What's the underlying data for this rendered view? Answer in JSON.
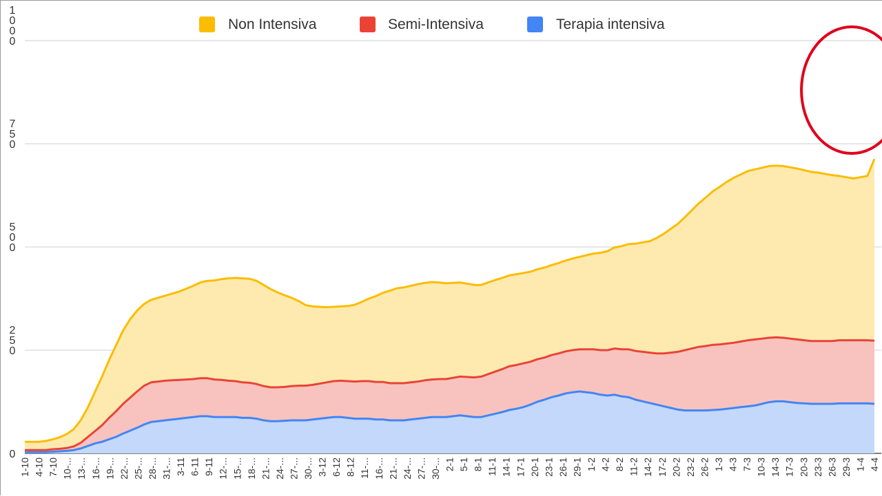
{
  "chart_data": {
    "type": "area",
    "stacked": true,
    "grid": true,
    "legend_position": "top",
    "ylim": [
      0,
      1000
    ],
    "y_ticks": [
      {
        "value": 0,
        "lines": [
          "0"
        ]
      },
      {
        "value": 250,
        "lines": [
          "2",
          "5",
          "0"
        ]
      },
      {
        "value": 500,
        "lines": [
          "5",
          "0",
          "0"
        ]
      },
      {
        "value": 750,
        "lines": [
          "7",
          "5",
          "0"
        ]
      },
      {
        "value": 1000,
        "lines": [
          "1",
          "0",
          "0",
          "0"
        ]
      }
    ],
    "x_tick_labels": [
      "1-10",
      "4-10",
      "7-10",
      "10-...",
      "13-...",
      "16-...",
      "19-...",
      "22-...",
      "25-...",
      "28-...",
      "31-...",
      "3-11",
      "6-11",
      "9-11",
      "12-...",
      "15-...",
      "18-...",
      "21-...",
      "24-...",
      "27-...",
      "30-...",
      "3-12",
      "6-12",
      "8-12",
      "11-...",
      "16-...",
      "21-...",
      "24-...",
      "27-...",
      "30-...",
      "2-1",
      "5-1",
      "8-1",
      "11-1",
      "14-1",
      "17-1",
      "20-1",
      "23-1",
      "26-1",
      "29-1",
      "1-2",
      "4-2",
      "8-2",
      "11-2",
      "14-2",
      "17-2",
      "20-2",
      "23-2",
      "26-2",
      "1-3",
      "4-3",
      "7-3",
      "10-3",
      "14-3",
      "17-3",
      "20-3",
      "23-3",
      "26-3",
      "29-3",
      "1-4",
      "4-4"
    ],
    "series": [
      {
        "name": "Terapia intensiva",
        "color": "#4285f4",
        "values": [
          3,
          3,
          3,
          3,
          4,
          5,
          6,
          8,
          12,
          18,
          24,
          28,
          34,
          40,
          48,
          55,
          62,
          70,
          76,
          78,
          80,
          82,
          84,
          86,
          88,
          90,
          90,
          88,
          88,
          88,
          88,
          86,
          86,
          84,
          80,
          78,
          78,
          79,
          80,
          80,
          80,
          82,
          84,
          86,
          88,
          88,
          86,
          84,
          84,
          84,
          82,
          82,
          80,
          80,
          80,
          82,
          84,
          86,
          88,
          88,
          88,
          90,
          92,
          90,
          88,
          88,
          92,
          96,
          100,
          105,
          108,
          112,
          118,
          125,
          130,
          136,
          140,
          145,
          148,
          150,
          148,
          146,
          142,
          140,
          142,
          138,
          136,
          130,
          126,
          122,
          118,
          114,
          110,
          106,
          104,
          104,
          104,
          104,
          105,
          106,
          108,
          110,
          112,
          114,
          116,
          120,
          124,
          126,
          126,
          124,
          122,
          121,
          120,
          120,
          120,
          120,
          121,
          121,
          121,
          121,
          121,
          120
        ]
      },
      {
        "name": "Semi-Intensiva",
        "color": "#ea4335",
        "values": [
          5,
          5,
          5,
          5,
          6,
          6,
          7,
          9,
          14,
          22,
          30,
          40,
          52,
          62,
          72,
          80,
          88,
          94,
          96,
          96,
          96,
          95,
          94,
          93,
          92,
          92,
          92,
          91,
          90,
          88,
          87,
          86,
          85,
          84,
          83,
          82,
          82,
          82,
          83,
          84,
          84,
          84,
          85,
          86,
          87,
          88,
          89,
          90,
          91,
          91,
          91,
          91,
          90,
          90,
          90,
          90,
          90,
          91,
          91,
          92,
          92,
          93,
          94,
          95,
          96,
          98,
          100,
          102,
          104,
          106,
          106,
          106,
          104,
          103,
          102,
          102,
          102,
          102,
          102,
          102,
          104,
          106,
          108,
          110,
          112,
          114,
          116,
          118,
          120,
          122,
          124,
          128,
          134,
          140,
          146,
          150,
          154,
          156,
          158,
          158,
          158,
          158,
          159,
          160,
          160,
          158,
          156,
          155,
          154,
          154,
          154,
          153,
          152,
          152,
          152,
          152,
          153,
          153,
          153,
          153,
          153,
          153
        ]
      },
      {
        "name": "Non Intensiva",
        "color": "#fbbc04",
        "values": [
          20,
          20,
          20,
          22,
          24,
          28,
          34,
          42,
          55,
          72,
          95,
          118,
          140,
          160,
          178,
          190,
          196,
          198,
          200,
          203,
          206,
          210,
          214,
          220,
          226,
          232,
          236,
          240,
          244,
          248,
          250,
          252,
          252,
          250,
          245,
          238,
          230,
          222,
          214,
          205,
          195,
          190,
          186,
          182,
          180,
          180,
          182,
          186,
          192,
          200,
          208,
          216,
          224,
          230,
          232,
          234,
          236,
          236,
          236,
          234,
          232,
          230,
          228,
          226,
          224,
          222,
          222,
          222,
          221,
          220,
          220,
          219,
          218,
          218,
          218,
          218,
          219,
          220,
          222,
          224,
          228,
          232,
          236,
          240,
          245,
          250,
          255,
          260,
          265,
          270,
          280,
          290,
          300,
          310,
          322,
          335,
          348,
          360,
          372,
          382,
          392,
          400,
          405,
          410,
          412,
          414,
          416,
          416,
          416,
          415,
          414,
          412,
          410,
          408,
          405,
          402,
          398,
          395,
          392,
          395,
          398,
          440
        ]
      }
    ],
    "legend": [
      {
        "label": "Non Intensiva",
        "color": "#fbbc04"
      },
      {
        "label": "Semi-Intensiva",
        "color": "#ea4335"
      },
      {
        "label": "Terapia intensiva",
        "color": "#4285f4"
      }
    ]
  },
  "annotation": {
    "shape": "ellipse",
    "color": "#e0001b",
    "x_from_index": 111,
    "x_to_index": 121,
    "y_center": 880
  }
}
